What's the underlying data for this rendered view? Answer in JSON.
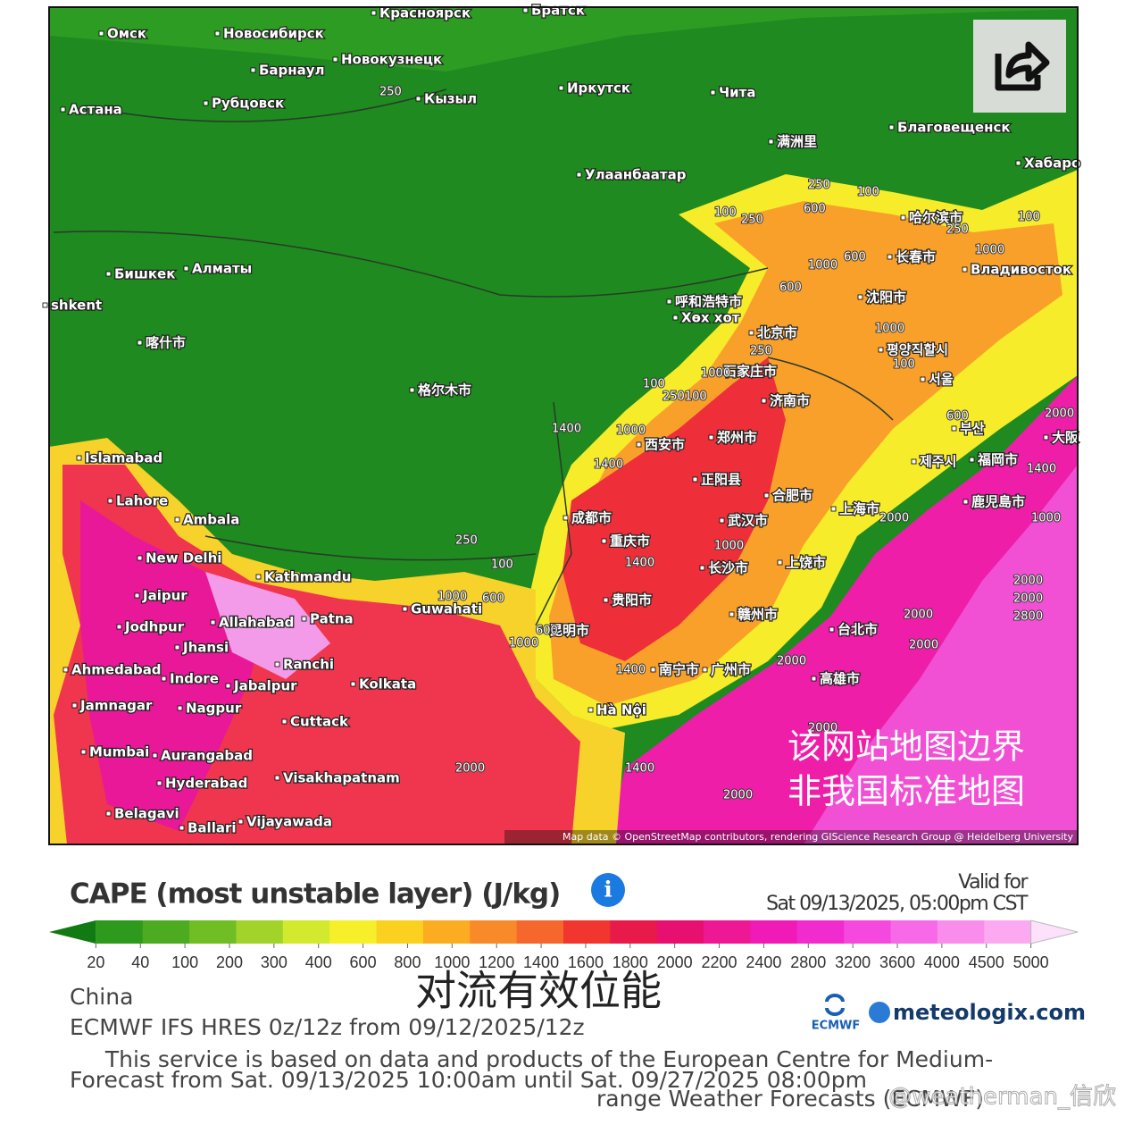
{
  "map": {
    "note_line1": "该网站地图边界",
    "note_line2": "非我国标准地图",
    "attribution": "Map data © OpenStreetMap contributors, rendering GIScience Research Group @ Heidelberg University",
    "cities": [
      "Омск",
      "Новосибирск",
      "Красноярск",
      "Братск",
      "Барнаул",
      "Новокузнецк",
      "Кызыл",
      "Иркутск",
      "Чита",
      "Астана",
      "Рубцовск",
      "Благовещенск",
      "满洲里",
      "Улаанбаатар",
      "Хабаро",
      "哈尔滨市",
      "长春市",
      "Владивосток",
      "Бишкек",
      "Алматы",
      "shkent",
      "沈阳市",
      "呼和浩特市",
      "Хөх хот",
      "喀什市",
      "北京市",
      "평양직할시",
      "石家庄市",
      "서울",
      "格尔木市",
      "济南市",
      "西安市",
      "郑州市",
      "부산",
      "제주시",
      "福岡市",
      "大阪",
      "Islamabad",
      "正阳县",
      "合肥市",
      "上海市",
      "鹿児島市",
      "Lahore",
      "Ambala",
      "成都市",
      "武汉市",
      "重庆市",
      "New Delhi",
      "Kathmandu",
      "长沙市",
      "上饶市",
      "Jaipur",
      "贵阳市",
      "Guwahati",
      "Patna",
      "赣州市",
      "Jodhpur",
      "Allahabad",
      "昆明市",
      "台北市",
      "Jhansi",
      "Ranchi",
      "南宁市",
      "广州市",
      "高雄市",
      "Ahmedabad",
      "Indore",
      "Jabalpur",
      "Kolkata",
      "Jamnagar",
      "Nagpur",
      "Hà Nội",
      "Cuttack",
      "Mumbai",
      "Aurangabad",
      "Hyderabad",
      "Visakhapatnam",
      "Belagavi",
      "Vijayawada",
      "Ballari"
    ],
    "contour_labels": [
      "250",
      "250",
      "100",
      "250",
      "600",
      "100",
      "250",
      "100",
      "1000",
      "600",
      "1000",
      "600",
      "1000",
      "600",
      "1000",
      "100",
      "250",
      "250100",
      "100",
      "1000",
      "1400",
      "1000",
      "1400",
      "2000",
      "2000",
      "2000",
      "2800",
      "2000",
      "2000",
      "1400",
      "2000",
      "1000",
      "100",
      "250",
      "600",
      "1000",
      "1400",
      "2000",
      "2000",
      "600",
      "1400",
      "2000",
      "1000",
      "2000",
      "1400"
    ]
  },
  "legend": {
    "title": "CAPE (most unstable layer) (J/kg)",
    "valid_label": "Valid for",
    "valid_time": "Sat 09/13/2025, 05:00pm CST",
    "colors": [
      "#127a12",
      "#2e9a1d",
      "#4cab21",
      "#70bd24",
      "#a2d32a",
      "#d3e92d",
      "#f6ef2a",
      "#fbd11f",
      "#fbac20",
      "#f98a2a",
      "#f5672c",
      "#f0362e",
      "#e71a4a",
      "#e70f6f",
      "#ee1894",
      "#f01bb6",
      "#f12ccf",
      "#f548de",
      "#f66ae7",
      "#f98dec",
      "#fbaaf1",
      "#fde0fa"
    ],
    "ticks": [
      20,
      40,
      100,
      200,
      300,
      400,
      600,
      800,
      1000,
      1200,
      1400,
      1600,
      1800,
      2000,
      2200,
      2400,
      2800,
      3200,
      3600,
      4000,
      4500,
      5000
    ]
  },
  "footer": {
    "region": "China",
    "model": "ECMWF IFS HRES 0z/12z from 09/12/2025/12z",
    "overlay_title": "对流有效位能",
    "ecmwf_logo": "ECMWF",
    "site_logo": "meteologix.com",
    "service_line1": "This service is based on data and products of the European Centre for Medium-",
    "forecast": "Forecast from Sat. 09/13/2025 10:00am until Sat. 09/27/2025 08:00pm",
    "service_line2": "range Weather Forecasts (ECMWF)",
    "watermark": "@weatherman_信欣"
  }
}
